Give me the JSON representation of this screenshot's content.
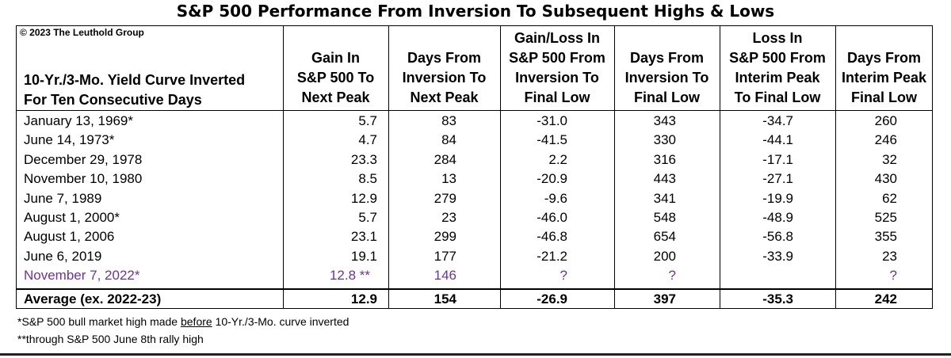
{
  "title": "S&P 500 Performance From Inversion To Subsequent Highs & Lows",
  "copyright": "© 2023 The Leuthold Group",
  "chart_data": {
    "type": "table",
    "title": "S&P 500 Performance From Inversion To Subsequent Highs & Lows",
    "row_header_lines": [
      "10-Yr./3-Mo. Yield Curve Inverted",
      "For Ten Consecutive Days"
    ],
    "columns": [
      {
        "lines": [
          "Gain In",
          "S&P 500 To",
          "Next Peak"
        ]
      },
      {
        "lines": [
          "Days From",
          "Inversion To",
          "Next Peak"
        ]
      },
      {
        "lines": [
          "Gain/Loss In",
          "S&P 500 From",
          "Inversion To",
          "Final Low"
        ]
      },
      {
        "lines": [
          "Days From",
          "Inversion To",
          "Final Low"
        ]
      },
      {
        "lines": [
          "Loss In",
          "S&P 500 From",
          "Interim Peak",
          "To Final Low"
        ]
      },
      {
        "lines": [
          "Days From",
          "Interim Peak",
          "Final Low"
        ]
      }
    ],
    "rows": [
      {
        "label": "January 13, 1969*",
        "values": [
          "5.7",
          "83",
          "-31.0",
          "343",
          "-34.7",
          "260"
        ]
      },
      {
        "label": "June 14, 1973*",
        "values": [
          "4.7",
          "84",
          "-41.5",
          "330",
          "-44.1",
          "246"
        ]
      },
      {
        "label": "December 29, 1978",
        "values": [
          "23.3",
          "284",
          "2.2",
          "316",
          "-17.1",
          "32"
        ]
      },
      {
        "label": "November 10, 1980",
        "values": [
          "8.5",
          "13",
          "-20.9",
          "443",
          "-27.1",
          "430"
        ]
      },
      {
        "label": "June 7, 1989",
        "values": [
          "12.9",
          "279",
          "-9.6",
          "341",
          "-19.9",
          "62"
        ]
      },
      {
        "label": "August 1, 2000*",
        "values": [
          "5.7",
          "23",
          "-46.0",
          "548",
          "-48.9",
          "525"
        ]
      },
      {
        "label": "August 1, 2006",
        "values": [
          "23.1",
          "299",
          "-46.8",
          "654",
          "-56.8",
          "355"
        ]
      },
      {
        "label": "June 6, 2019",
        "values": [
          "19.1",
          "177",
          "-21.2",
          "200",
          "-33.9",
          "23"
        ]
      },
      {
        "label": "November 7, 2022*",
        "values": [
          "12.8 **",
          "146",
          "?",
          "?",
          "",
          "?"
        ],
        "highlight": true
      }
    ],
    "average": {
      "label": "Average (ex. 2022-23)",
      "values": [
        "12.9",
        "154",
        "-26.9",
        "397",
        "-35.3",
        "242"
      ]
    },
    "footnotes": {
      "note1_pre": "*S&P 500 bull market high made ",
      "note1_underlined": "before",
      "note1_post": " 10-Yr./3-Mo. curve inverted",
      "note2": "**through S&P 500 June 8th rally high"
    }
  },
  "colors": {
    "highlight": "#7030a0",
    "text": "#000000"
  }
}
